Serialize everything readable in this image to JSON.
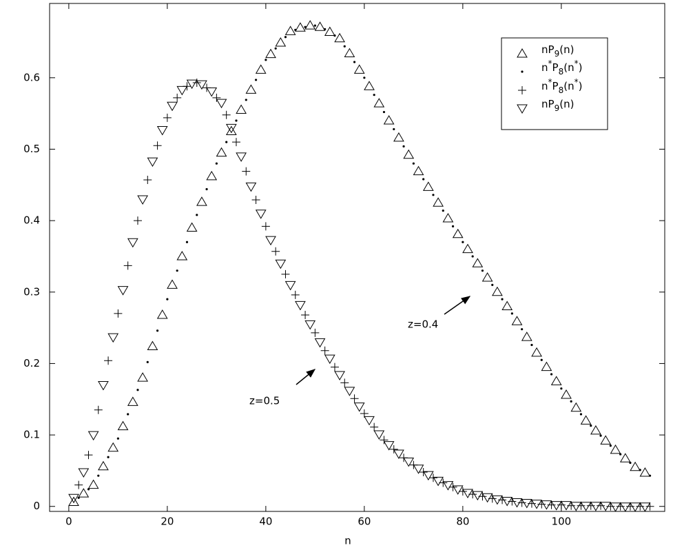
{
  "chart_data": {
    "type": "scatter",
    "xlabel": "n",
    "xlim": [
      -3.9,
      121
    ],
    "ylim": [
      -0.007,
      0.704
    ],
    "xticks": [
      0,
      20,
      40,
      60,
      80,
      100
    ],
    "yticks": [
      0,
      0.1,
      0.2,
      0.3,
      0.4,
      0.5,
      0.6
    ],
    "legend": "top-right",
    "annotations": [
      "z=0.5",
      "z=0.4"
    ],
    "series": [
      {
        "name": "nP9(n)",
        "marker": "triangle-up",
        "color": "#000000",
        "x": [
          1,
          3,
          5,
          7,
          9,
          11,
          13,
          15,
          17,
          19,
          21,
          23,
          25,
          27,
          29,
          31,
          33,
          35,
          37,
          39,
          41,
          43,
          45,
          47,
          49,
          51,
          53,
          55,
          57,
          59,
          61,
          63,
          65,
          67,
          69,
          71,
          73,
          75,
          77,
          79,
          81,
          83,
          85,
          87,
          89,
          91,
          93,
          95,
          97,
          99,
          101,
          103,
          105,
          107,
          109,
          111,
          113,
          115,
          117
        ],
        "values": [
          0.006,
          0.018,
          0.03,
          0.056,
          0.082,
          0.112,
          0.146,
          0.18,
          0.224,
          0.268,
          0.31,
          0.35,
          0.39,
          0.426,
          0.462,
          0.495,
          0.525,
          0.555,
          0.583,
          0.611,
          0.633,
          0.649,
          0.665,
          0.67,
          0.673,
          0.671,
          0.664,
          0.655,
          0.634,
          0.611,
          0.588,
          0.564,
          0.54,
          0.516,
          0.492,
          0.469,
          0.447,
          0.425,
          0.403,
          0.381,
          0.36,
          0.34,
          0.32,
          0.3,
          0.28,
          0.259,
          0.237,
          0.215,
          0.195,
          0.175,
          0.156,
          0.138,
          0.12,
          0.106,
          0.092,
          0.079,
          0.067,
          0.055,
          0.047
        ]
      },
      {
        "name": "n*P8(n*)",
        "marker": "dot",
        "color": "#000000",
        "x": [
          2,
          4,
          6,
          8,
          10,
          12,
          14,
          16,
          18,
          20,
          22,
          24,
          26,
          28,
          30,
          32,
          34,
          36,
          38,
          40,
          42,
          44,
          46,
          48,
          50,
          52,
          54,
          56,
          58,
          60,
          62,
          64,
          66,
          68,
          70,
          72,
          74,
          76,
          78,
          80,
          82,
          84,
          86,
          88,
          90,
          92,
          94,
          96,
          98,
          100,
          102,
          104,
          106,
          108,
          110,
          112,
          114,
          116,
          118
        ],
        "values": [
          0.012,
          0.024,
          0.043,
          0.069,
          0.095,
          0.129,
          0.163,
          0.202,
          0.246,
          0.29,
          0.33,
          0.37,
          0.408,
          0.444,
          0.48,
          0.51,
          0.54,
          0.569,
          0.597,
          0.625,
          0.641,
          0.657,
          0.667,
          0.671,
          0.673,
          0.668,
          0.659,
          0.644,
          0.622,
          0.6,
          0.576,
          0.552,
          0.528,
          0.504,
          0.48,
          0.458,
          0.436,
          0.414,
          0.392,
          0.37,
          0.35,
          0.33,
          0.31,
          0.29,
          0.27,
          0.248,
          0.226,
          0.205,
          0.185,
          0.165,
          0.147,
          0.129,
          0.113,
          0.099,
          0.085,
          0.073,
          0.061,
          0.051,
          0.043
        ]
      },
      {
        "name": "n*P8(n*)",
        "marker": "plus",
        "color": "#000000",
        "x": [
          2,
          4,
          6,
          8,
          10,
          12,
          14,
          16,
          18,
          20,
          22,
          24,
          26,
          28,
          30,
          32,
          34,
          36,
          38,
          40,
          42,
          44,
          46,
          48,
          50,
          52,
          54,
          56,
          58,
          60,
          62,
          64,
          66,
          68,
          70,
          72,
          74,
          76,
          78,
          80,
          82,
          84,
          86,
          88,
          90,
          92,
          94,
          96,
          98,
          100,
          102,
          104,
          106,
          108,
          110,
          112,
          114,
          116,
          118
        ],
        "values": [
          0.03,
          0.072,
          0.135,
          0.204,
          0.27,
          0.337,
          0.4,
          0.457,
          0.505,
          0.544,
          0.572,
          0.588,
          0.593,
          0.586,
          0.572,
          0.548,
          0.51,
          0.469,
          0.429,
          0.392,
          0.357,
          0.325,
          0.296,
          0.268,
          0.243,
          0.218,
          0.195,
          0.173,
          0.151,
          0.13,
          0.111,
          0.093,
          0.08,
          0.068,
          0.058,
          0.048,
          0.04,
          0.033,
          0.027,
          0.021,
          0.017,
          0.014,
          0.011,
          0.009,
          0.007,
          0.005,
          0.004,
          0.003,
          0.002,
          0.002,
          0.001,
          0.001,
          0.001,
          0.001,
          0,
          0,
          0,
          0,
          0
        ]
      },
      {
        "name": "nP9(n)",
        "marker": "triangle-down",
        "color": "#000000",
        "x": [
          1,
          3,
          5,
          7,
          9,
          11,
          13,
          15,
          17,
          19,
          21,
          23,
          25,
          27,
          29,
          31,
          33,
          35,
          37,
          39,
          41,
          43,
          45,
          47,
          49,
          51,
          53,
          55,
          57,
          59,
          61,
          63,
          65,
          67,
          69,
          71,
          73,
          75,
          77,
          79,
          81,
          83,
          85,
          87,
          89,
          91,
          93,
          95,
          97,
          99,
          101,
          103,
          105,
          107,
          109,
          111,
          113,
          115,
          117
        ],
        "values": [
          0.012,
          0.048,
          0.1,
          0.17,
          0.237,
          0.303,
          0.37,
          0.43,
          0.483,
          0.527,
          0.561,
          0.583,
          0.592,
          0.591,
          0.581,
          0.565,
          0.53,
          0.49,
          0.448,
          0.41,
          0.373,
          0.34,
          0.31,
          0.282,
          0.255,
          0.23,
          0.207,
          0.184,
          0.162,
          0.14,
          0.121,
          0.101,
          0.086,
          0.074,
          0.063,
          0.053,
          0.044,
          0.036,
          0.03,
          0.024,
          0.019,
          0.016,
          0.013,
          0.01,
          0.008,
          0.006,
          0.005,
          0.004,
          0.003,
          0.002,
          0.002,
          0.001,
          0.001,
          0.001,
          0.001,
          0,
          0,
          0,
          0
        ]
      }
    ]
  }
}
